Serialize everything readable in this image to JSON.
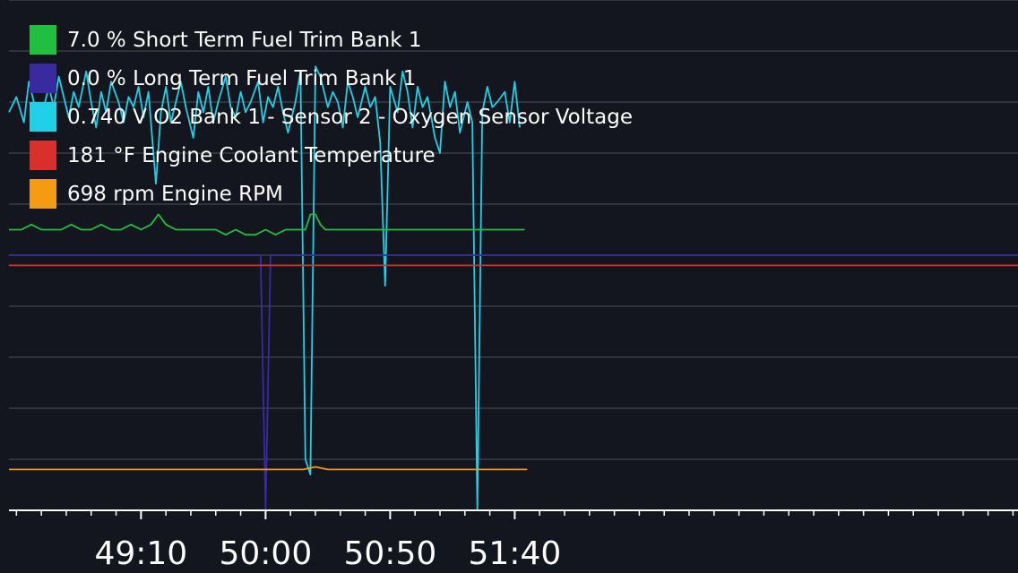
{
  "chart_data": {
    "type": "line",
    "title": "",
    "xlabel": "",
    "ylabel": "",
    "x_range": [
      3317,
      3722
    ],
    "y_range": [
      0,
      10
    ],
    "grid": "horizontal",
    "x_ticks": [
      {
        "value": 3370,
        "label": "49:10"
      },
      {
        "value": 3420,
        "label": "50:00"
      },
      {
        "value": 3470,
        "label": "50:50"
      },
      {
        "value": 3520,
        "label": "51:40"
      }
    ],
    "legend": [
      {
        "value": "7.0",
        "unit": "%",
        "name": "Short Term Fuel Trim Bank 1",
        "color": "#1fbf3f"
      },
      {
        "value": "0.0",
        "unit": "%",
        "name": "Long Term Fuel Trim Bank 1",
        "color": "#3a2a9f"
      },
      {
        "value": "0.740",
        "unit": "V",
        "name": "O2 Bank 1 - Sensor 2 - Oxygen Sensor Voltage",
        "color": "#1fd0e6"
      },
      {
        "value": "181",
        "unit": "°F",
        "name": "Engine Coolant Temperature",
        "color": "#d9302c"
      },
      {
        "value": "698",
        "unit": "rpm",
        "name": "Engine RPM",
        "color": "#f39c12"
      }
    ],
    "series": [
      {
        "name": "O2 Bank 1 - Sensor 2 - Oxygen Sensor Voltage",
        "color": "#1fd0e6",
        "x": [
          3317,
          3320,
          3323,
          3325,
          3327,
          3330,
          3333,
          3335,
          3337,
          3339,
          3341,
          3343,
          3345,
          3348,
          3350,
          3352,
          3354,
          3356,
          3358,
          3361,
          3363,
          3365,
          3367,
          3369,
          3371,
          3373,
          3376,
          3378,
          3380,
          3382,
          3384,
          3386,
          3388,
          3391,
          3393,
          3395,
          3397,
          3399,
          3401,
          3404,
          3406,
          3408,
          3410,
          3412,
          3414,
          3417,
          3419,
          3421,
          3423,
          3425,
          3427,
          3429,
          3432,
          3434,
          3436,
          3438,
          3440,
          3442,
          3445,
          3447,
          3449,
          3451,
          3453,
          3455,
          3457,
          3460,
          3462,
          3464,
          3466,
          3468,
          3470,
          3473,
          3475,
          3477,
          3479,
          3481,
          3483,
          3485,
          3488,
          3490,
          3492,
          3494,
          3496,
          3498,
          3501,
          3503,
          3505,
          3507,
          3509,
          3511,
          3513,
          3516,
          3518,
          3520,
          3522
        ],
        "y": [
          7.8,
          8.1,
          7.6,
          8.4,
          8.0,
          7.7,
          8.3,
          7.9,
          8.5,
          8.1,
          7.7,
          8.2,
          7.9,
          8.6,
          8.0,
          7.5,
          8.2,
          7.8,
          8.4,
          8.0,
          7.6,
          8.1,
          7.9,
          8.3,
          7.7,
          8.2,
          6.4,
          7.8,
          8.3,
          7.6,
          8.0,
          8.4,
          7.9,
          7.3,
          8.2,
          7.8,
          8.3,
          7.6,
          8.0,
          8.5,
          7.9,
          7.7,
          8.2,
          7.8,
          8.0,
          8.4,
          7.6,
          8.1,
          7.9,
          8.3,
          7.8,
          7.4,
          8.0,
          8.6,
          1.0,
          0.7,
          8.7,
          8.5,
          7.9,
          8.2,
          8.0,
          7.5,
          8.4,
          8.1,
          7.7,
          8.3,
          7.9,
          8.1,
          7.2,
          4.4,
          8.3,
          7.8,
          8.6,
          8.2,
          7.5,
          8.3,
          7.9,
          8.1,
          7.3,
          7.0,
          8.4,
          7.9,
          8.2,
          7.4,
          8.0,
          7.6,
          0.0,
          7.8,
          8.3,
          7.9,
          8.0,
          8.2,
          7.6,
          8.4,
          7.5
        ]
      },
      {
        "name": "Short Term Fuel Trim Bank 1",
        "color": "#1fbf3f",
        "x": [
          3317,
          3322,
          3326,
          3330,
          3334,
          3338,
          3342,
          3346,
          3350,
          3354,
          3358,
          3362,
          3366,
          3370,
          3374,
          3377,
          3380,
          3384,
          3388,
          3392,
          3396,
          3400,
          3404,
          3408,
          3412,
          3416,
          3420,
          3424,
          3428,
          3432,
          3436,
          3438,
          3440,
          3442,
          3444,
          3448,
          3452,
          3456,
          3460,
          3464,
          3468,
          3472,
          3476,
          3480,
          3484,
          3488,
          3492,
          3496,
          3500,
          3504,
          3508,
          3512,
          3516,
          3520,
          3524
        ],
        "y": [
          5.5,
          5.5,
          5.6,
          5.5,
          5.5,
          5.5,
          5.6,
          5.5,
          5.5,
          5.6,
          5.5,
          5.5,
          5.6,
          5.5,
          5.6,
          5.8,
          5.6,
          5.5,
          5.5,
          5.5,
          5.5,
          5.5,
          5.4,
          5.5,
          5.4,
          5.4,
          5.5,
          5.4,
          5.5,
          5.5,
          5.5,
          5.8,
          5.8,
          5.6,
          5.5,
          5.5,
          5.5,
          5.5,
          5.5,
          5.5,
          5.5,
          5.5,
          5.5,
          5.5,
          5.5,
          5.5,
          5.5,
          5.5,
          5.5,
          5.5,
          5.5,
          5.5,
          5.5,
          5.5,
          5.5
        ]
      },
      {
        "name": "Long Term Fuel Trim Bank 1",
        "color": "#3a2a9f",
        "x": [
          3317,
          3418,
          3420,
          3422,
          3722
        ],
        "y": [
          5.0,
          5.0,
          0.0,
          5.0,
          5.0
        ]
      },
      {
        "name": "Engine Coolant Temperature",
        "color": "#d9302c",
        "x": [
          3317,
          3722
        ],
        "y": [
          4.8,
          4.8
        ]
      },
      {
        "name": "Engine RPM",
        "color": "#f39c12",
        "x": [
          3317,
          3325,
          3335,
          3345,
          3355,
          3365,
          3375,
          3385,
          3395,
          3405,
          3415,
          3425,
          3435,
          3440,
          3445,
          3455,
          3465,
          3475,
          3485,
          3495,
          3505,
          3515,
          3525
        ],
        "y": [
          0.8,
          0.8,
          0.8,
          0.8,
          0.8,
          0.8,
          0.8,
          0.8,
          0.8,
          0.8,
          0.8,
          0.8,
          0.8,
          0.85,
          0.8,
          0.8,
          0.8,
          0.8,
          0.8,
          0.8,
          0.8,
          0.8,
          0.8
        ]
      }
    ]
  }
}
